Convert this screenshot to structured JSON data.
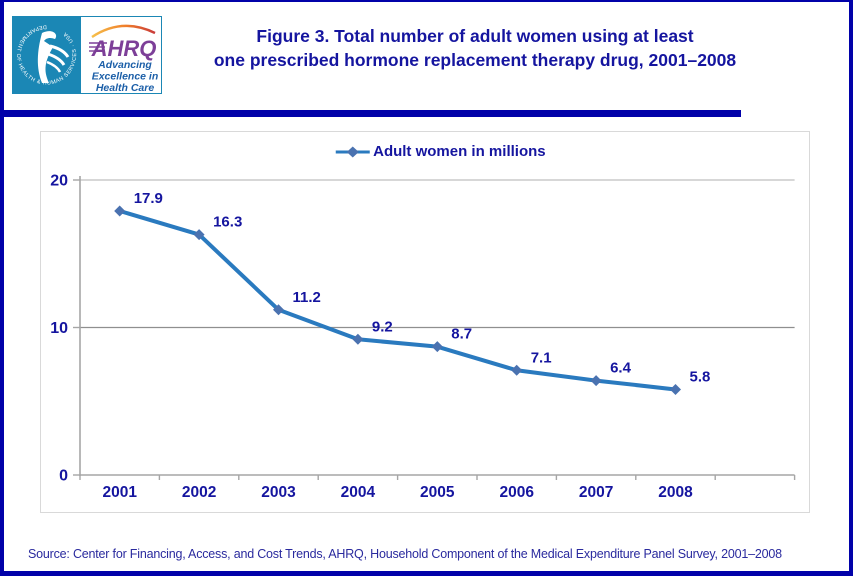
{
  "header": {
    "logo": {
      "hhs_circle_text": "DEPARTMENT OF HEALTH & HUMAN SERVICES · USA",
      "ahrq_acronym": "AHRQ",
      "tagline_lines": [
        "Advancing",
        "Excellence in",
        "Health Care"
      ]
    },
    "title_lines": [
      "Figure 3. Total number of adult women using at least",
      "one prescribed hormone replacement therapy drug, 2001–2008"
    ]
  },
  "chart_data": {
    "type": "line",
    "title": "Figure 3. Total number of adult women using at least one prescribed hormone replacement therapy drug, 2001–2008",
    "categories": [
      "2001",
      "2002",
      "2003",
      "2004",
      "2005",
      "2006",
      "2007",
      "2008"
    ],
    "series": [
      {
        "name": "Adult women in millions",
        "values": [
          17.9,
          16.3,
          11.2,
          9.2,
          8.7,
          7.1,
          6.4,
          5.8
        ]
      }
    ],
    "data_labels": [
      "17.9",
      "16.3",
      "11.2",
      "9.2",
      "8.7",
      "7.1",
      "6.4",
      "5.8"
    ],
    "xlabel": "",
    "ylabel": "",
    "ylim": [
      0,
      20
    ],
    "yticks": [
      0,
      10,
      20
    ],
    "grid": "horizontal",
    "legend": {
      "label": "Adult women in millions",
      "position": "top-center"
    },
    "colors": {
      "line": "#2a7abf",
      "marker": "#4a72b0",
      "label": "#15159f"
    }
  },
  "source": "Source: Center for Financing, Access, and Cost Trends, AHRQ, Household Component of the Medical Expenditure Panel Survey, 2001–2008",
  "colors": {
    "navy_text": "#15159f",
    "page_border": "#0101a9",
    "logo_teal": "#1b87b5",
    "ahrq_purple": "#7d3f98",
    "tagline_blue": "#1c5fa8",
    "gridline_major": "#8f8f8f",
    "gridline_top": "#bfbfbf",
    "axis_gray": "#a6a6a6"
  }
}
